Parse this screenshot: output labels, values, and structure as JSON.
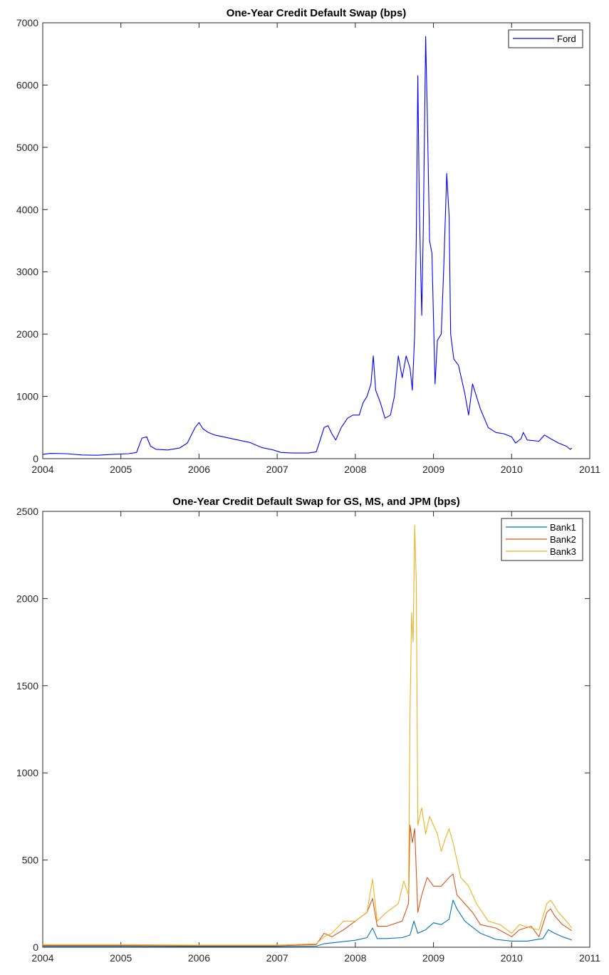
{
  "chart_data": [
    {
      "type": "line",
      "title": "One-Year Credit Default Swap (bps)",
      "xlabel": "",
      "ylabel": "",
      "xlim": [
        2004,
        2011
      ],
      "ylim": [
        0,
        7000
      ],
      "x_ticks": [
        "2004",
        "2005",
        "2006",
        "2007",
        "2008",
        "2009",
        "2010",
        "2011"
      ],
      "y_ticks": [
        "0",
        "1000",
        "2000",
        "3000",
        "4000",
        "5000",
        "6000",
        "7000"
      ],
      "grid": false,
      "legend_position": "top-right",
      "series": [
        {
          "name": "Ford",
          "color": "#0000ff",
          "points": [
            [
              2004.0,
              70
            ],
            [
              2004.1,
              85
            ],
            [
              2004.3,
              80
            ],
            [
              2004.5,
              60
            ],
            [
              2004.7,
              55
            ],
            [
              2004.9,
              70
            ],
            [
              2005.1,
              80
            ],
            [
              2005.2,
              100
            ],
            [
              2005.27,
              330
            ],
            [
              2005.33,
              350
            ],
            [
              2005.38,
              200
            ],
            [
              2005.45,
              150
            ],
            [
              2005.6,
              140
            ],
            [
              2005.75,
              170
            ],
            [
              2005.85,
              250
            ],
            [
              2005.95,
              500
            ],
            [
              2006.0,
              580
            ],
            [
              2006.05,
              480
            ],
            [
              2006.12,
              420
            ],
            [
              2006.2,
              380
            ],
            [
              2006.35,
              340
            ],
            [
              2006.5,
              300
            ],
            [
              2006.65,
              260
            ],
            [
              2006.8,
              180
            ],
            [
              2006.95,
              140
            ],
            [
              2007.05,
              100
            ],
            [
              2007.2,
              90
            ],
            [
              2007.4,
              90
            ],
            [
              2007.5,
              110
            ],
            [
              2007.55,
              300
            ],
            [
              2007.6,
              500
            ],
            [
              2007.65,
              530
            ],
            [
              2007.7,
              400
            ],
            [
              2007.75,
              300
            ],
            [
              2007.82,
              500
            ],
            [
              2007.9,
              650
            ],
            [
              2007.97,
              700
            ],
            [
              2008.05,
              700
            ],
            [
              2008.1,
              900
            ],
            [
              2008.15,
              1000
            ],
            [
              2008.2,
              1200
            ],
            [
              2008.23,
              1650
            ],
            [
              2008.26,
              1100
            ],
            [
              2008.32,
              900
            ],
            [
              2008.38,
              650
            ],
            [
              2008.45,
              700
            ],
            [
              2008.5,
              1000
            ],
            [
              2008.55,
              1650
            ],
            [
              2008.6,
              1300
            ],
            [
              2008.65,
              1650
            ],
            [
              2008.7,
              1450
            ],
            [
              2008.73,
              1100
            ],
            [
              2008.76,
              2000
            ],
            [
              2008.78,
              3500
            ],
            [
              2008.8,
              6150
            ],
            [
              2008.82,
              4000
            ],
            [
              2008.85,
              2300
            ],
            [
              2008.87,
              3700
            ],
            [
              2008.9,
              6780
            ],
            [
              2008.92,
              5600
            ],
            [
              2008.95,
              3500
            ],
            [
              2008.98,
              3300
            ],
            [
              2009.02,
              1200
            ],
            [
              2009.05,
              1900
            ],
            [
              2009.1,
              2000
            ],
            [
              2009.13,
              3000
            ],
            [
              2009.17,
              4580
            ],
            [
              2009.2,
              3900
            ],
            [
              2009.22,
              2000
            ],
            [
              2009.26,
              1600
            ],
            [
              2009.32,
              1500
            ],
            [
              2009.4,
              1050
            ],
            [
              2009.45,
              700
            ],
            [
              2009.5,
              1200
            ],
            [
              2009.6,
              800
            ],
            [
              2009.7,
              500
            ],
            [
              2009.8,
              420
            ],
            [
              2009.9,
              400
            ],
            [
              2010.0,
              350
            ],
            [
              2010.05,
              250
            ],
            [
              2010.12,
              320
            ],
            [
              2010.15,
              420
            ],
            [
              2010.2,
              300
            ],
            [
              2010.35,
              280
            ],
            [
              2010.42,
              380
            ],
            [
              2010.5,
              320
            ],
            [
              2010.6,
              250
            ],
            [
              2010.7,
              200
            ],
            [
              2010.75,
              150
            ],
            [
              2010.77,
              170
            ]
          ]
        }
      ]
    },
    {
      "type": "line",
      "title": "One-Year Credit Default Swap for GS, MS, and JPM (bps)",
      "xlabel": "",
      "ylabel": "",
      "xlim": [
        2004,
        2011
      ],
      "ylim": [
        0,
        2500
      ],
      "x_ticks": [
        "2004",
        "2005",
        "2006",
        "2007",
        "2008",
        "2009",
        "2010",
        "2011"
      ],
      "y_ticks": [
        "0",
        "500",
        "1000",
        "1500",
        "2000",
        "2500"
      ],
      "grid": false,
      "legend_position": "top-right",
      "series": [
        {
          "name": "Bank1",
          "color": "#0072bd",
          "points": [
            [
              2004.0,
              5
            ],
            [
              2005.0,
              5
            ],
            [
              2006.0,
              4
            ],
            [
              2007.0,
              4
            ],
            [
              2007.5,
              6
            ],
            [
              2007.6,
              20
            ],
            [
              2007.8,
              30
            ],
            [
              2008.0,
              40
            ],
            [
              2008.15,
              55
            ],
            [
              2008.22,
              110
            ],
            [
              2008.28,
              50
            ],
            [
              2008.4,
              50
            ],
            [
              2008.6,
              55
            ],
            [
              2008.7,
              70
            ],
            [
              2008.75,
              150
            ],
            [
              2008.8,
              80
            ],
            [
              2008.9,
              100
            ],
            [
              2009.0,
              140
            ],
            [
              2009.1,
              130
            ],
            [
              2009.2,
              160
            ],
            [
              2009.25,
              270
            ],
            [
              2009.3,
              220
            ],
            [
              2009.4,
              150
            ],
            [
              2009.6,
              80
            ],
            [
              2009.8,
              45
            ],
            [
              2010.0,
              35
            ],
            [
              2010.2,
              35
            ],
            [
              2010.4,
              50
            ],
            [
              2010.47,
              100
            ],
            [
              2010.55,
              80
            ],
            [
              2010.65,
              60
            ],
            [
              2010.75,
              45
            ],
            [
              2010.77,
              40
            ]
          ]
        },
        {
          "name": "Bank2",
          "color": "#d95319",
          "points": [
            [
              2004.0,
              10
            ],
            [
              2005.0,
              10
            ],
            [
              2006.0,
              8
            ],
            [
              2007.0,
              8
            ],
            [
              2007.5,
              15
            ],
            [
              2007.6,
              80
            ],
            [
              2007.7,
              60
            ],
            [
              2007.85,
              100
            ],
            [
              2008.0,
              150
            ],
            [
              2008.15,
              200
            ],
            [
              2008.22,
              280
            ],
            [
              2008.28,
              120
            ],
            [
              2008.4,
              120
            ],
            [
              2008.6,
              150
            ],
            [
              2008.68,
              250
            ],
            [
              2008.7,
              700
            ],
            [
              2008.73,
              600
            ],
            [
              2008.76,
              680
            ],
            [
              2008.8,
              200
            ],
            [
              2008.85,
              300
            ],
            [
              2008.92,
              400
            ],
            [
              2009.0,
              350
            ],
            [
              2009.1,
              350
            ],
            [
              2009.2,
              400
            ],
            [
              2009.25,
              420
            ],
            [
              2009.3,
              300
            ],
            [
              2009.4,
              250
            ],
            [
              2009.5,
              200
            ],
            [
              2009.6,
              130
            ],
            [
              2009.8,
              110
            ],
            [
              2010.0,
              60
            ],
            [
              2010.1,
              100
            ],
            [
              2010.25,
              120
            ],
            [
              2010.35,
              60
            ],
            [
              2010.45,
              200
            ],
            [
              2010.5,
              220
            ],
            [
              2010.55,
              180
            ],
            [
              2010.65,
              130
            ],
            [
              2010.77,
              95
            ]
          ]
        },
        {
          "name": "Bank3",
          "color": "#edb120",
          "points": [
            [
              2004.0,
              15
            ],
            [
              2005.0,
              15
            ],
            [
              2006.0,
              12
            ],
            [
              2007.0,
              12
            ],
            [
              2007.5,
              20
            ],
            [
              2007.6,
              60
            ],
            [
              2007.7,
              80
            ],
            [
              2007.85,
              150
            ],
            [
              2008.0,
              150
            ],
            [
              2008.15,
              200
            ],
            [
              2008.22,
              390
            ],
            [
              2008.28,
              150
            ],
            [
              2008.4,
              200
            ],
            [
              2008.55,
              250
            ],
            [
              2008.62,
              380
            ],
            [
              2008.68,
              300
            ],
            [
              2008.7,
              1350
            ],
            [
              2008.72,
              1920
            ],
            [
              2008.74,
              1750
            ],
            [
              2008.76,
              2420
            ],
            [
              2008.78,
              2100
            ],
            [
              2008.8,
              700
            ],
            [
              2008.85,
              800
            ],
            [
              2008.9,
              650
            ],
            [
              2008.95,
              750
            ],
            [
              2009.0,
              700
            ],
            [
              2009.05,
              650
            ],
            [
              2009.1,
              550
            ],
            [
              2009.15,
              620
            ],
            [
              2009.2,
              680
            ],
            [
              2009.25,
              600
            ],
            [
              2009.3,
              500
            ],
            [
              2009.35,
              400
            ],
            [
              2009.45,
              350
            ],
            [
              2009.55,
              250
            ],
            [
              2009.7,
              150
            ],
            [
              2009.85,
              130
            ],
            [
              2010.0,
              80
            ],
            [
              2010.1,
              130
            ],
            [
              2010.25,
              110
            ],
            [
              2010.35,
              100
            ],
            [
              2010.45,
              250
            ],
            [
              2010.5,
              270
            ],
            [
              2010.6,
              200
            ],
            [
              2010.7,
              150
            ],
            [
              2010.77,
              110
            ]
          ]
        }
      ]
    }
  ]
}
